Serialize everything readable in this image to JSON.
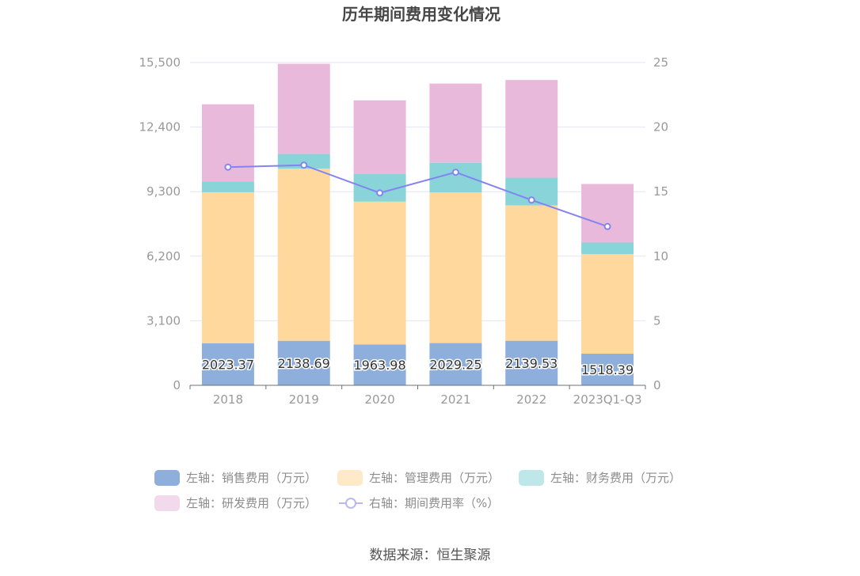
{
  "chart_data": {
    "type": "bar",
    "stacked": true,
    "title": "历年期间费用变化情况",
    "source": "数据来源：恒生聚源",
    "categories": [
      "2018",
      "2019",
      "2020",
      "2021",
      "2022",
      "2023Q1-Q3"
    ],
    "left_axis": {
      "min": 0,
      "max": 15500,
      "ticks": [
        0,
        3100,
        6200,
        9300,
        12400,
        15500
      ],
      "tick_labels": [
        "0",
        "3,100",
        "6,200",
        "9,300",
        "12,400",
        "15,500"
      ]
    },
    "right_axis": {
      "min": 0,
      "max": 25,
      "ticks": [
        0,
        5,
        10,
        15,
        20,
        25
      ],
      "tick_labels": [
        "0",
        "5",
        "10",
        "15",
        "20",
        "25"
      ]
    },
    "series": [
      {
        "name": "左轴：销售费用（万元）",
        "axis": "left",
        "type": "bar",
        "color": "#8eaedb",
        "values": [
          2023.37,
          2138.69,
          1963.98,
          2029.25,
          2139.53,
          1518.39
        ],
        "labels": [
          "2023.37",
          "2138.69",
          "1963.98",
          "2029.25",
          "2139.53",
          "1518.39"
        ]
      },
      {
        "name": "左轴：管理费用（万元）",
        "axis": "left",
        "type": "bar",
        "color": "#fed89d",
        "values": [
          7250,
          8270,
          6860,
          7230,
          6500,
          4780
        ]
      },
      {
        "name": "左轴：财务费用（万元）",
        "axis": "left",
        "type": "bar",
        "color": "#88d4d9",
        "values": [
          520,
          700,
          1320,
          1420,
          1330,
          560
        ]
      },
      {
        "name": "左轴：研发费用（万元）",
        "axis": "left",
        "type": "bar",
        "color": "#e8b9da",
        "values": [
          3700,
          4330,
          3540,
          3810,
          4690,
          2810
        ]
      },
      {
        "name": "右轴：期间费用率（%）",
        "axis": "right",
        "type": "line",
        "color": "#8484f0",
        "values": [
          16.9,
          17.05,
          14.9,
          16.5,
          14.35,
          12.3
        ]
      }
    ],
    "legend": {
      "position": "bottom"
    }
  }
}
